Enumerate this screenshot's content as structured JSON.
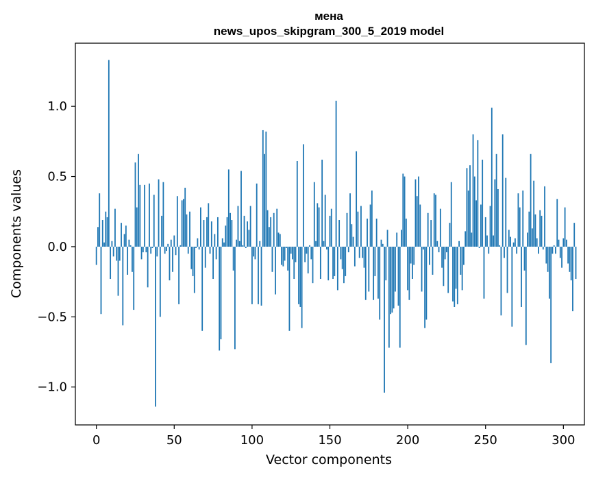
{
  "chart_data": {
    "type": "bar",
    "title": "мена",
    "subtitle": "news_upos_skipgram_300_5_2019 model",
    "xlabel": "Vector components",
    "ylabel": "Components values",
    "xlim": [
      -13.5,
      313.5
    ],
    "ylim": [
      -1.27,
      1.45
    ],
    "xticks": [
      0,
      50,
      100,
      150,
      200,
      250,
      300
    ],
    "xtick_labels": [
      "0",
      "50",
      "100",
      "150",
      "200",
      "250",
      "300"
    ],
    "yticks": [
      -1.0,
      -0.5,
      0.0,
      0.5,
      1.0
    ],
    "ytick_labels": [
      "−1.0",
      "−0.5",
      "0.0",
      "0.5",
      "1.0"
    ],
    "grid": false,
    "bar_color": "#1f77b4",
    "x_start": 0,
    "values": [
      -0.13,
      0.14,
      0.38,
      -0.48,
      0.19,
      0.03,
      0.25,
      0.21,
      1.33,
      -0.23,
      0.04,
      -0.07,
      0.27,
      -0.1,
      -0.35,
      -0.1,
      0.17,
      -0.56,
      0.09,
      0.15,
      -0.2,
      0.05,
      0.01,
      -0.18,
      -0.45,
      0.6,
      0.28,
      0.66,
      0.44,
      -0.09,
      -0.04,
      0.44,
      -0.04,
      -0.29,
      0.45,
      -0.05,
      -0.01,
      0.37,
      -1.14,
      -0.07,
      0.48,
      -0.5,
      0.22,
      0.46,
      -0.05,
      -0.03,
      0.02,
      -0.24,
      0.05,
      -0.18,
      0.08,
      -0.06,
      0.36,
      -0.41,
      0.01,
      0.33,
      0.34,
      0.42,
      0.23,
      -0.05,
      0.25,
      -0.16,
      -0.21,
      -0.33,
      -0.01,
      0.06,
      -0.02,
      0.28,
      -0.6,
      0.19,
      -0.15,
      0.21,
      0.31,
      -0.05,
      0.18,
      -0.23,
      0.09,
      -0.09,
      0.21,
      -0.74,
      -0.66,
      0.06,
      0.03,
      0.15,
      0.21,
      0.55,
      0.24,
      0.19,
      -0.17,
      -0.73,
      0.05,
      0.29,
      0.04,
      0.54,
      0.01,
      0.22,
      -0.01,
      0.18,
      0.12,
      0.29,
      -0.41,
      -0.07,
      -0.09,
      0.45,
      -0.41,
      0.04,
      -0.42,
      0.83,
      0.66,
      0.82,
      0.26,
      0.14,
      0.21,
      -0.18,
      0.24,
      -0.34,
      0.27,
      0.1,
      0.09,
      -0.13,
      -0.14,
      -0.1,
      -0.01,
      -0.17,
      -0.6,
      -0.05,
      -0.09,
      -0.23,
      -0.11,
      0.61,
      -0.41,
      -0.43,
      -0.58,
      0.73,
      -0.11,
      -0.05,
      -0.19,
      0.01,
      -0.09,
      -0.26,
      0.46,
      0.04,
      0.31,
      0.28,
      -0.23,
      0.62,
      0.04,
      0.37,
      -0.02,
      -0.24,
      0.22,
      0.27,
      -0.23,
      -0.21,
      1.04,
      -0.31,
      0.19,
      -0.09,
      -0.16,
      -0.26,
      -0.21,
      0.24,
      -0.04,
      0.38,
      0.16,
      0.07,
      -0.14,
      0.68,
      0.25,
      -0.08,
      0.29,
      -0.08,
      -0.15,
      -0.38,
      0.2,
      -0.32,
      0.3,
      0.4,
      -0.38,
      -0.21,
      0.2,
      -0.37,
      -0.52,
      0.05,
      0.02,
      -1.04,
      -0.24,
      0.12,
      -0.72,
      -0.48,
      -0.47,
      -0.44,
      -0.32,
      0.1,
      -0.42,
      -0.72,
      0.12,
      0.52,
      0.5,
      0.2,
      -0.31,
      -0.38,
      -0.12,
      -0.23,
      -0.13,
      0.48,
      0.36,
      0.5,
      0.3,
      -0.32,
      -0.02,
      -0.58,
      -0.52,
      0.24,
      -0.13,
      0.19,
      -0.2,
      0.38,
      0.37,
      0.04,
      -0.04,
      0.27,
      -0.15,
      -0.28,
      -0.09,
      -0.04,
      -0.33,
      0.17,
      0.46,
      -0.39,
      -0.43,
      -0.3,
      -0.41,
      0.04,
      -0.2,
      -0.31,
      -0.13,
      0.11,
      0.56,
      0.4,
      0.58,
      0.1,
      0.8,
      0.5,
      0.33,
      0.76,
      -0.01,
      0.3,
      0.62,
      -0.37,
      0.21,
      0.08,
      -0.05,
      0.29,
      0.99,
      0.08,
      0.48,
      0.66,
      0.41,
      0.01,
      -0.49,
      0.8,
      -0.08,
      0.49,
      -0.33,
      0.12,
      0.07,
      -0.57,
      0.03,
      0.06,
      -0.05,
      0.38,
      0.28,
      -0.43,
      0.4,
      -0.17,
      -0.7,
      0.1,
      0.25,
      0.66,
      0.13,
      0.47,
      0.23,
      0.06,
      -0.05,
      0.26,
      0.22,
      -0.02,
      0.43,
      -0.12,
      -0.18,
      -0.37,
      -0.83,
      -0.05,
      0.01,
      -0.05,
      0.34,
      0.05,
      -0.08,
      -0.15,
      0.06,
      0.28,
      0.05,
      -0.12,
      -0.18,
      -0.24,
      -0.46,
      0.17,
      -0.23
    ]
  }
}
